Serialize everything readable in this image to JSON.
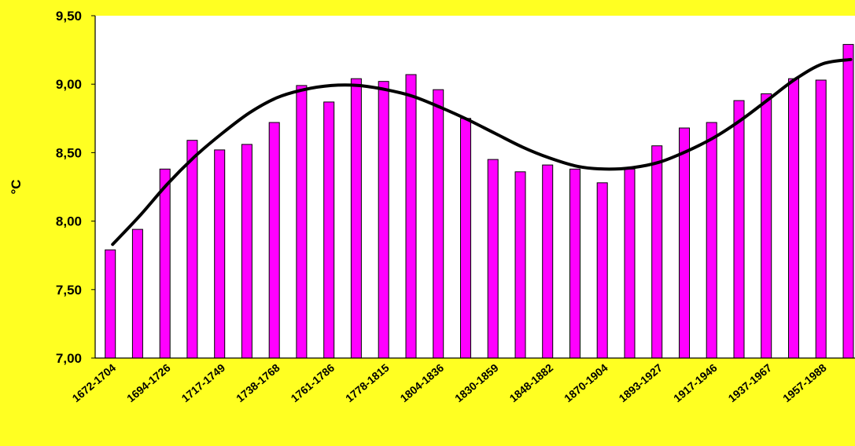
{
  "chart_data": {
    "type": "bar",
    "title": "",
    "xlabel": "",
    "ylabel": "°C",
    "ylim": [
      7.0,
      9.5
    ],
    "y_ticks": [
      "7,00",
      "7,50",
      "8,00",
      "8,50",
      "9,00",
      "9,50"
    ],
    "x_tick_labels": [
      "1672-1704",
      "1694-1726",
      "1717-1749",
      "1738-1768",
      "1761-1786",
      "1778-1815",
      "1804-1836",
      "1830-1859",
      "1848-1882",
      "1870-1904",
      "1893-1927",
      "1917-1946",
      "1937-1967",
      "1957-1988"
    ],
    "values": [
      7.79,
      7.94,
      8.38,
      8.59,
      8.52,
      8.56,
      8.72,
      8.99,
      8.87,
      9.04,
      9.02,
      9.07,
      8.96,
      8.75,
      8.45,
      8.36,
      8.41,
      8.38,
      8.28,
      8.38,
      8.55,
      8.68,
      8.72,
      8.88,
      8.93,
      9.04,
      9.03,
      9.29
    ],
    "trend_line": {
      "type": "polynomial",
      "values": [
        7.83,
        8.04,
        8.27,
        8.47,
        8.64,
        8.79,
        8.9,
        8.96,
        8.99,
        8.99,
        8.96,
        8.91,
        8.83,
        8.74,
        8.64,
        8.54,
        8.46,
        8.4,
        8.38,
        8.39,
        8.43,
        8.51,
        8.61,
        8.74,
        8.89,
        9.04,
        9.15,
        9.18
      ]
    },
    "colors": {
      "background": "#ffff22",
      "plot_area": "#ffffff",
      "bar_fill": "#ff00ff",
      "bar_stroke": "#000000",
      "trend_line": "#000000",
      "text": "#000000"
    },
    "grid": false,
    "legend": "none"
  }
}
